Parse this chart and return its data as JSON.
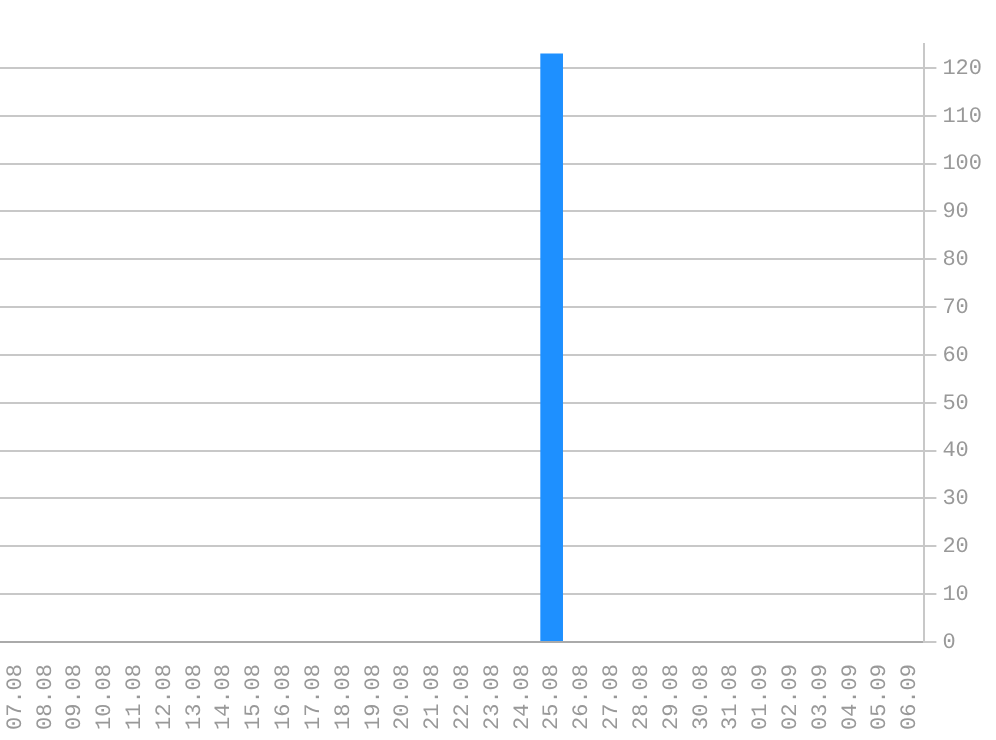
{
  "chart_data": {
    "type": "bar",
    "categories": [
      "07.08",
      "08.08",
      "09.08",
      "10.08",
      "11.08",
      "12.08",
      "13.08",
      "14.08",
      "15.08",
      "16.08",
      "17.08",
      "18.08",
      "19.08",
      "20.08",
      "21.08",
      "22.08",
      "23.08",
      "24.08",
      "25.08",
      "26.08",
      "27.08",
      "28.08",
      "29.08",
      "30.08",
      "31.08",
      "01.09",
      "02.09",
      "03.09",
      "04.09",
      "05.09",
      "06.09"
    ],
    "values": [
      0,
      0,
      0,
      0,
      0,
      0,
      0,
      0,
      0,
      0,
      0,
      0,
      0,
      0,
      0,
      0,
      0,
      0,
      123,
      0,
      0,
      0,
      0,
      0,
      0,
      0,
      0,
      0,
      0,
      0,
      0
    ],
    "color": "#1e90ff",
    "ylim": [
      0,
      125
    ],
    "yticks": [
      0,
      10,
      20,
      30,
      40,
      50,
      60,
      70,
      80,
      90,
      100,
      110,
      120
    ],
    "grid": "y",
    "legend": false
  }
}
